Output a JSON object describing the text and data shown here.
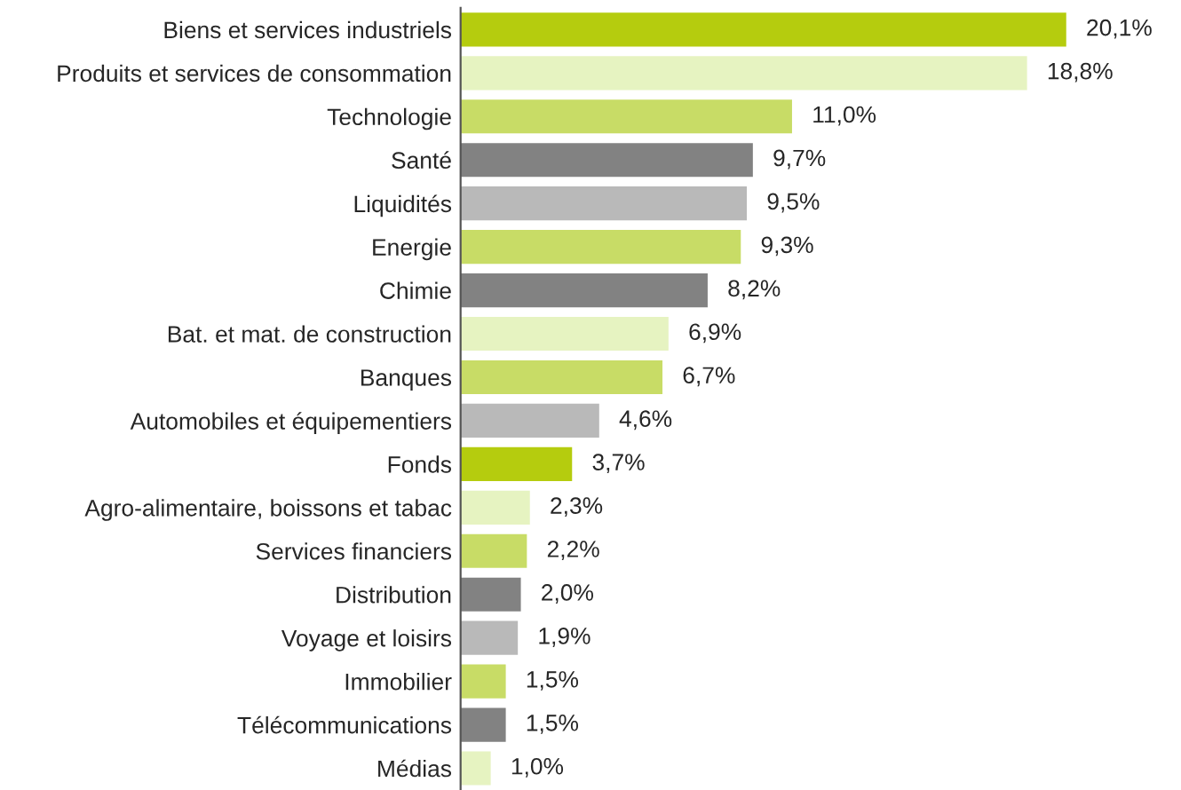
{
  "chart_data": {
    "type": "bar",
    "orientation": "horizontal",
    "categories": [
      "Biens et services industriels",
      "Produits et services de consommation",
      "Technologie",
      "Santé",
      "Liquidités",
      "Energie",
      "Chimie",
      "Bat. et mat. de construction",
      "Banques",
      "Automobiles et équipementiers",
      "Fonds",
      "Agro-alimentaire, boissons et tabac",
      "Services financiers",
      "Distribution",
      "Voyage et loisirs",
      "Immobilier",
      "Télécommunications",
      "Médias"
    ],
    "values": [
      20.1,
      18.8,
      11.0,
      9.7,
      9.5,
      9.3,
      8.2,
      6.9,
      6.7,
      4.6,
      3.7,
      2.3,
      2.2,
      2.0,
      1.9,
      1.5,
      1.5,
      1.0
    ],
    "value_labels": [
      "20,1%",
      "18,8%",
      "11,0%",
      "9,7%",
      "9,5%",
      "9,3%",
      "8,2%",
      "6,9%",
      "6,7%",
      "4,6%",
      "3,7%",
      "2,3%",
      "2,2%",
      "2,0%",
      "1,9%",
      "1,5%",
      "1,5%",
      "1,0%"
    ],
    "colors": [
      "#b5cc0e",
      "#e6f3c1",
      "#c8dc66",
      "#828282",
      "#b9b9b9",
      "#c8dc66",
      "#828282",
      "#e6f3c1",
      "#c8dc66",
      "#b9b9b9",
      "#b5cc0e",
      "#e6f3c1",
      "#c8dc66",
      "#828282",
      "#b9b9b9",
      "#c8dc66",
      "#828282",
      "#e6f3c1"
    ],
    "tick_labels": "y",
    "grid": false,
    "legend": false
  }
}
